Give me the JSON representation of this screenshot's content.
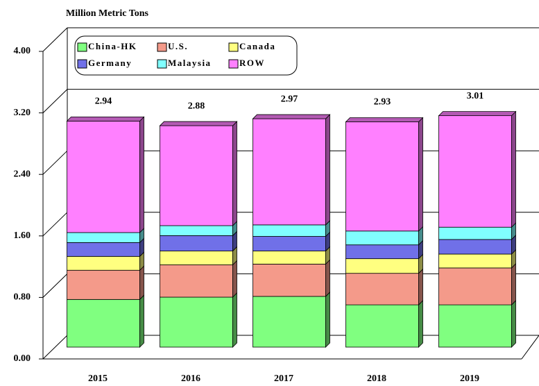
{
  "chart_data": {
    "type": "stacked-bar-3d",
    "y_axis_label": "Million Metric Tons",
    "categories": [
      "2015",
      "2016",
      "2017",
      "2018",
      "2019"
    ],
    "series": [
      {
        "name": "China-HK",
        "color": "#80ff80",
        "values": [
          0.62,
          0.65,
          0.66,
          0.55,
          0.55
        ]
      },
      {
        "name": "U.S.",
        "color": "#f49a8a",
        "values": [
          0.38,
          0.42,
          0.42,
          0.41,
          0.48
        ]
      },
      {
        "name": "Canada",
        "color": "#ffff80",
        "values": [
          0.18,
          0.18,
          0.17,
          0.19,
          0.18
        ]
      },
      {
        "name": "Germany",
        "color": "#7070e8",
        "values": [
          0.18,
          0.2,
          0.19,
          0.18,
          0.19
        ]
      },
      {
        "name": "Malaysia",
        "color": "#80ffff",
        "values": [
          0.13,
          0.13,
          0.15,
          0.18,
          0.16
        ]
      },
      {
        "name": "ROW",
        "color": "#ff80ff",
        "values": [
          1.45,
          1.3,
          1.38,
          1.42,
          1.45
        ]
      }
    ],
    "totals": [
      2.94,
      2.88,
      2.97,
      2.93,
      3.01
    ],
    "ylim": [
      0,
      4
    ],
    "yticks": [
      {
        "value": 0,
        "label": "0.00"
      },
      {
        "value": 0.8,
        "label": "0.80"
      },
      {
        "value": 1.6,
        "label": "1.60"
      },
      {
        "value": 2.4,
        "label": "2.40"
      },
      {
        "value": 3.2,
        "label": "3.20"
      },
      {
        "value": 4,
        "label": "4.00"
      }
    ],
    "grid": true
  }
}
